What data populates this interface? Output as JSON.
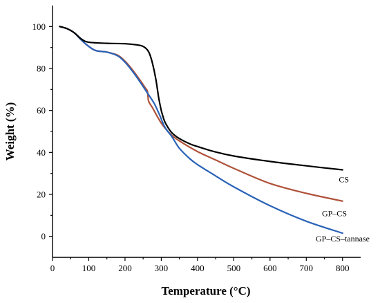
{
  "chart_data": {
    "type": "line",
    "xlabel": "Temperature (°C)",
    "ylabel": "Weight (%)",
    "xlim": [
      0,
      850
    ],
    "ylim": [
      -10,
      110
    ],
    "x_ticks": [
      0,
      100,
      200,
      300,
      400,
      500,
      600,
      700,
      800
    ],
    "y_ticks": [
      0,
      20,
      40,
      60,
      80,
      100
    ],
    "grid": false,
    "legend": "none",
    "series": [
      {
        "name": "CS",
        "color": "#000000",
        "x": [
          20,
          40,
          60,
          80,
          100,
          150,
          200,
          230,
          250,
          265,
          275,
          285,
          293,
          300,
          305,
          310,
          320,
          330,
          350,
          380,
          400,
          450,
          500,
          600,
          700,
          800
        ],
        "y": [
          100,
          99,
          97,
          94,
          92.5,
          92,
          91.8,
          91.3,
          90.5,
          88,
          83,
          75,
          66,
          60,
          57,
          54.5,
          51.5,
          49.2,
          46.6,
          44,
          42.8,
          40.2,
          38.3,
          35.7,
          33.6,
          31.7
        ]
      },
      {
        "name": "GP–CS",
        "color": "#b0523a",
        "x": [
          20,
          40,
          60,
          80,
          100,
          120,
          150,
          180,
          200,
          220,
          240,
          255,
          262,
          265,
          275,
          300,
          325,
          350,
          400,
          450,
          500,
          600,
          700,
          800
        ],
        "y": [
          100,
          99,
          97,
          93.5,
          90.5,
          88.5,
          87.8,
          86.3,
          83.5,
          79.5,
          74.8,
          71,
          69,
          64.5,
          61.5,
          54,
          48.8,
          45.5,
          40.4,
          36.4,
          32.4,
          25.2,
          20.5,
          16.8
        ]
      },
      {
        "name": "GP–CS–tannase",
        "color": "#2a62b7",
        "x": [
          20,
          40,
          60,
          80,
          100,
          120,
          150,
          180,
          200,
          220,
          240,
          260,
          280,
          295,
          310,
          330,
          350,
          380,
          400,
          450,
          500,
          600,
          700,
          800
        ],
        "y": [
          100,
          99,
          97,
          93.5,
          90.5,
          88.5,
          87.8,
          86,
          83,
          78.8,
          74,
          68.8,
          63.5,
          58,
          52,
          47.3,
          42,
          36.8,
          34.2,
          28.8,
          23.6,
          14.6,
          7.2,
          1.5
        ]
      }
    ]
  }
}
